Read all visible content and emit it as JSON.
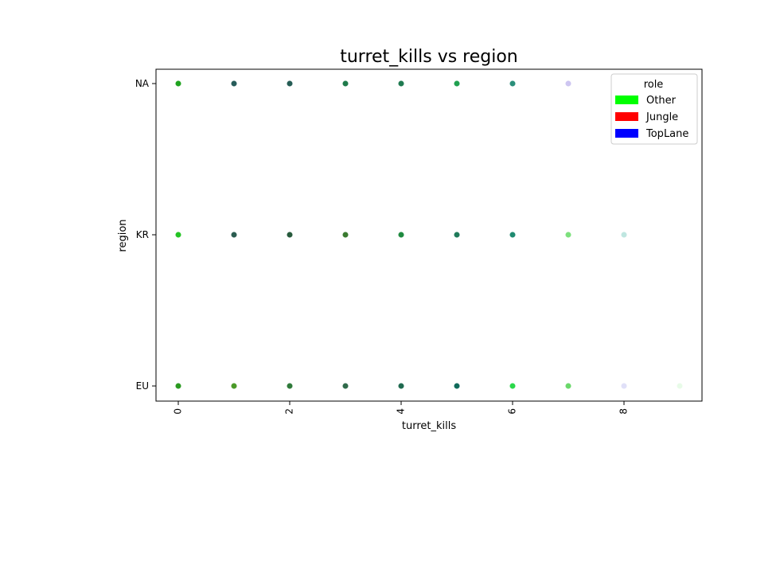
{
  "chart_data": {
    "type": "scatter",
    "title": "turret_kills vs region",
    "xlabel": "turret_kills",
    "ylabel": "region",
    "xlim": [
      -0.4,
      9.4
    ],
    "x_ticks": [
      0,
      2,
      4,
      6,
      8
    ],
    "categories_y": [
      "EU",
      "KR",
      "NA"
    ],
    "grid": false,
    "legend": {
      "title": "role",
      "placement": "top-right",
      "entries": [
        {
          "label": "Other",
          "color": "#00ff00"
        },
        {
          "label": "Jungle",
          "color": "#ff0000"
        },
        {
          "label": "TopLane",
          "color": "#0000ff"
        }
      ]
    },
    "points": [
      {
        "x": 0,
        "y": "NA",
        "color": "#1fa31f",
        "alpha": 1.0
      },
      {
        "x": 1,
        "y": "NA",
        "color": "#265c5a",
        "alpha": 1.0
      },
      {
        "x": 2,
        "y": "NA",
        "color": "#255d55",
        "alpha": 1.0
      },
      {
        "x": 3,
        "y": "NA",
        "color": "#1f7a4a",
        "alpha": 1.0
      },
      {
        "x": 4,
        "y": "NA",
        "color": "#1f7a50",
        "alpha": 1.0
      },
      {
        "x": 5,
        "y": "NA",
        "color": "#20a050",
        "alpha": 1.0
      },
      {
        "x": 6,
        "y": "NA",
        "color": "#2a8f7a",
        "alpha": 1.0
      },
      {
        "x": 7,
        "y": "NA",
        "color": "#c9c0f0",
        "alpha": 0.9
      },
      {
        "x": 0,
        "y": "KR",
        "color": "#24c424",
        "alpha": 1.0
      },
      {
        "x": 1,
        "y": "KR",
        "color": "#2a5c50",
        "alpha": 1.0
      },
      {
        "x": 2,
        "y": "KR",
        "color": "#275a3c",
        "alpha": 1.0
      },
      {
        "x": 3,
        "y": "KR",
        "color": "#3a7a30",
        "alpha": 1.0
      },
      {
        "x": 4,
        "y": "KR",
        "color": "#1f8a40",
        "alpha": 1.0
      },
      {
        "x": 5,
        "y": "KR",
        "color": "#1f7a5a",
        "alpha": 1.0
      },
      {
        "x": 6,
        "y": "KR",
        "color": "#1f8a70",
        "alpha": 1.0
      },
      {
        "x": 7,
        "y": "KR",
        "color": "#7de07d",
        "alpha": 1.0
      },
      {
        "x": 8,
        "y": "KR",
        "color": "#bfe6e0",
        "alpha": 1.0
      },
      {
        "x": 0,
        "y": "EU",
        "color": "#2a9a20",
        "alpha": 1.0
      },
      {
        "x": 1,
        "y": "EU",
        "color": "#4a9a28",
        "alpha": 1.0
      },
      {
        "x": 2,
        "y": "EU",
        "color": "#2f7a3a",
        "alpha": 1.0
      },
      {
        "x": 3,
        "y": "EU",
        "color": "#2f6a4a",
        "alpha": 1.0
      },
      {
        "x": 4,
        "y": "EU",
        "color": "#1f6a50",
        "alpha": 1.0
      },
      {
        "x": 5,
        "y": "EU",
        "color": "#0f6a5a",
        "alpha": 1.0
      },
      {
        "x": 6,
        "y": "EU",
        "color": "#2ad84a",
        "alpha": 1.0
      },
      {
        "x": 7,
        "y": "EU",
        "color": "#6ad86a",
        "alpha": 1.0
      },
      {
        "x": 8,
        "y": "EU",
        "color": "#e0e0f8",
        "alpha": 1.0
      },
      {
        "x": 9,
        "y": "EU",
        "color": "#e8fbe8",
        "alpha": 1.0
      }
    ]
  }
}
